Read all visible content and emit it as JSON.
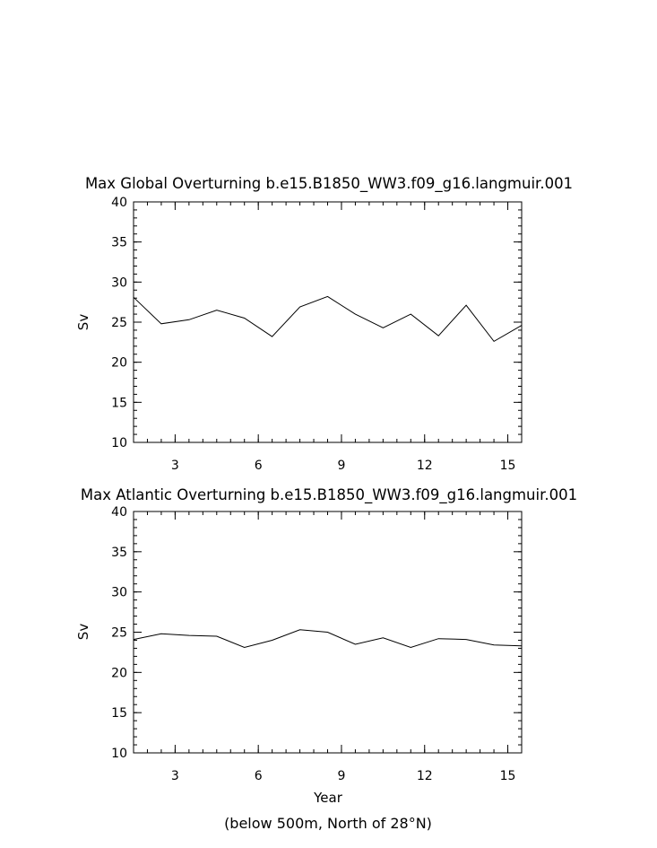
{
  "chart_data": [
    {
      "type": "line",
      "title": "Max Global Overturning b.e15.B1850_WW3.f09_g16.langmuir.001",
      "xlabel": "",
      "ylabel": "Sv",
      "xlim": [
        1.5,
        15.5
      ],
      "ylim": [
        10,
        40
      ],
      "xticks": [
        3,
        6,
        9,
        12,
        15
      ],
      "yticks": [
        10,
        15,
        20,
        25,
        30,
        35,
        40
      ],
      "grid": false,
      "x": [
        1.5,
        2.5,
        3.5,
        4.5,
        5.5,
        6.5,
        7.5,
        8.5,
        9.5,
        10.5,
        11.5,
        12.5,
        13.5,
        14.5,
        15.5
      ],
      "series": [
        {
          "values": [
            28.1,
            24.8,
            25.3,
            26.5,
            25.5,
            23.2,
            26.9,
            28.2,
            26.0,
            24.3,
            26.0,
            23.3,
            27.1,
            22.6,
            24.6
          ]
        }
      ]
    },
    {
      "type": "line",
      "title": "Max Atlantic Overturning b.e15.B1850_WW3.f09_g16.langmuir.001",
      "xlabel": "Year",
      "ylabel": "Sv",
      "note": "(below 500m, North of 28°N)",
      "xlim": [
        1.5,
        15.5
      ],
      "ylim": [
        10,
        40
      ],
      "xticks": [
        3,
        6,
        9,
        12,
        15
      ],
      "yticks": [
        10,
        15,
        20,
        25,
        30,
        35,
        40
      ],
      "grid": false,
      "x": [
        1.5,
        2.5,
        3.5,
        4.5,
        5.5,
        6.5,
        7.5,
        8.5,
        9.5,
        10.5,
        11.5,
        12.5,
        13.5,
        14.5,
        15.5
      ],
      "series": [
        {
          "values": [
            24.1,
            24.8,
            24.6,
            24.5,
            23.1,
            24.0,
            25.3,
            25.0,
            23.5,
            24.3,
            23.1,
            24.2,
            24.1,
            23.4,
            23.3
          ]
        }
      ]
    }
  ]
}
